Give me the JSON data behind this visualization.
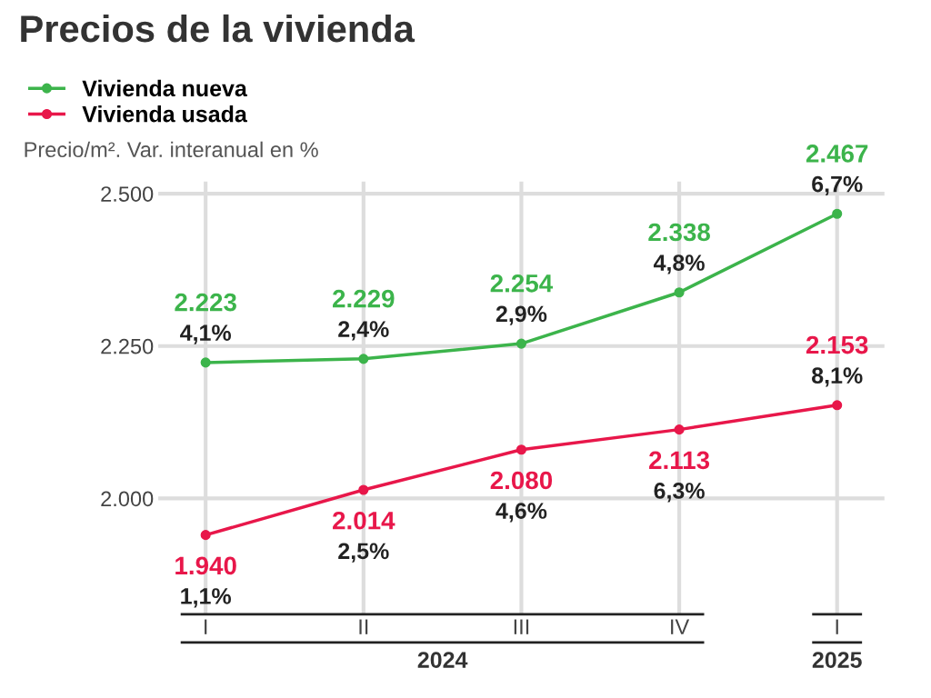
{
  "chart_data": {
    "type": "line",
    "title": "Precios de la vivienda",
    "subtitle": "Precio/m². Var. interanual en %",
    "categories": [
      "I",
      "II",
      "III",
      "IV",
      "I"
    ],
    "series": [
      {
        "name": "Vivienda nueva",
        "color": "#3cb44b",
        "values": [
          2223,
          2229,
          2254,
          2338,
          2467
        ],
        "value_labels": [
          "2.223",
          "2.229",
          "2.254",
          "2.338",
          "2.467"
        ]
      },
      {
        "name": "Vivienda usada",
        "color": "#e8174a",
        "values": [
          1940,
          2014,
          2080,
          2113,
          2153
        ],
        "value_labels": [
          "1.940",
          "2.014",
          "2.080",
          "2.113",
          "2.153"
        ]
      }
    ],
    "ylim": [
      1810,
      2520
    ],
    "yticks": [
      {
        "value": 2000,
        "label": "2.000"
      },
      {
        "value": 2250,
        "label": "2.250"
      },
      {
        "value": 2500,
        "label": "2.500"
      }
    ],
    "grid": true,
    "legend": "top left",
    "marker": "circle",
    "line_style": "solid",
    "annotations": [
      {
        "text": "4,1%",
        "x": "I",
        "y": 2223
      },
      {
        "text": "2,4%",
        "x": "II",
        "y": 2229
      },
      {
        "text": "2,9%",
        "x": "III",
        "y": 2254
      },
      {
        "text": "4,8%",
        "x": "IV",
        "y": 2338
      },
      "6,7%",
      {
        "text": "1,1%",
        "x": "I",
        "y": 1940
      },
      {
        "text": "2,5%",
        "x": "II",
        "y": 2014
      },
      {
        "text": "4,6%",
        "x": "III",
        "y": 2080
      },
      {
        "text": "6,3%",
        "x": "IV",
        "y": 2113
      },
      "8,1%",
      "2024",
      "2025"
    ]
  }
}
